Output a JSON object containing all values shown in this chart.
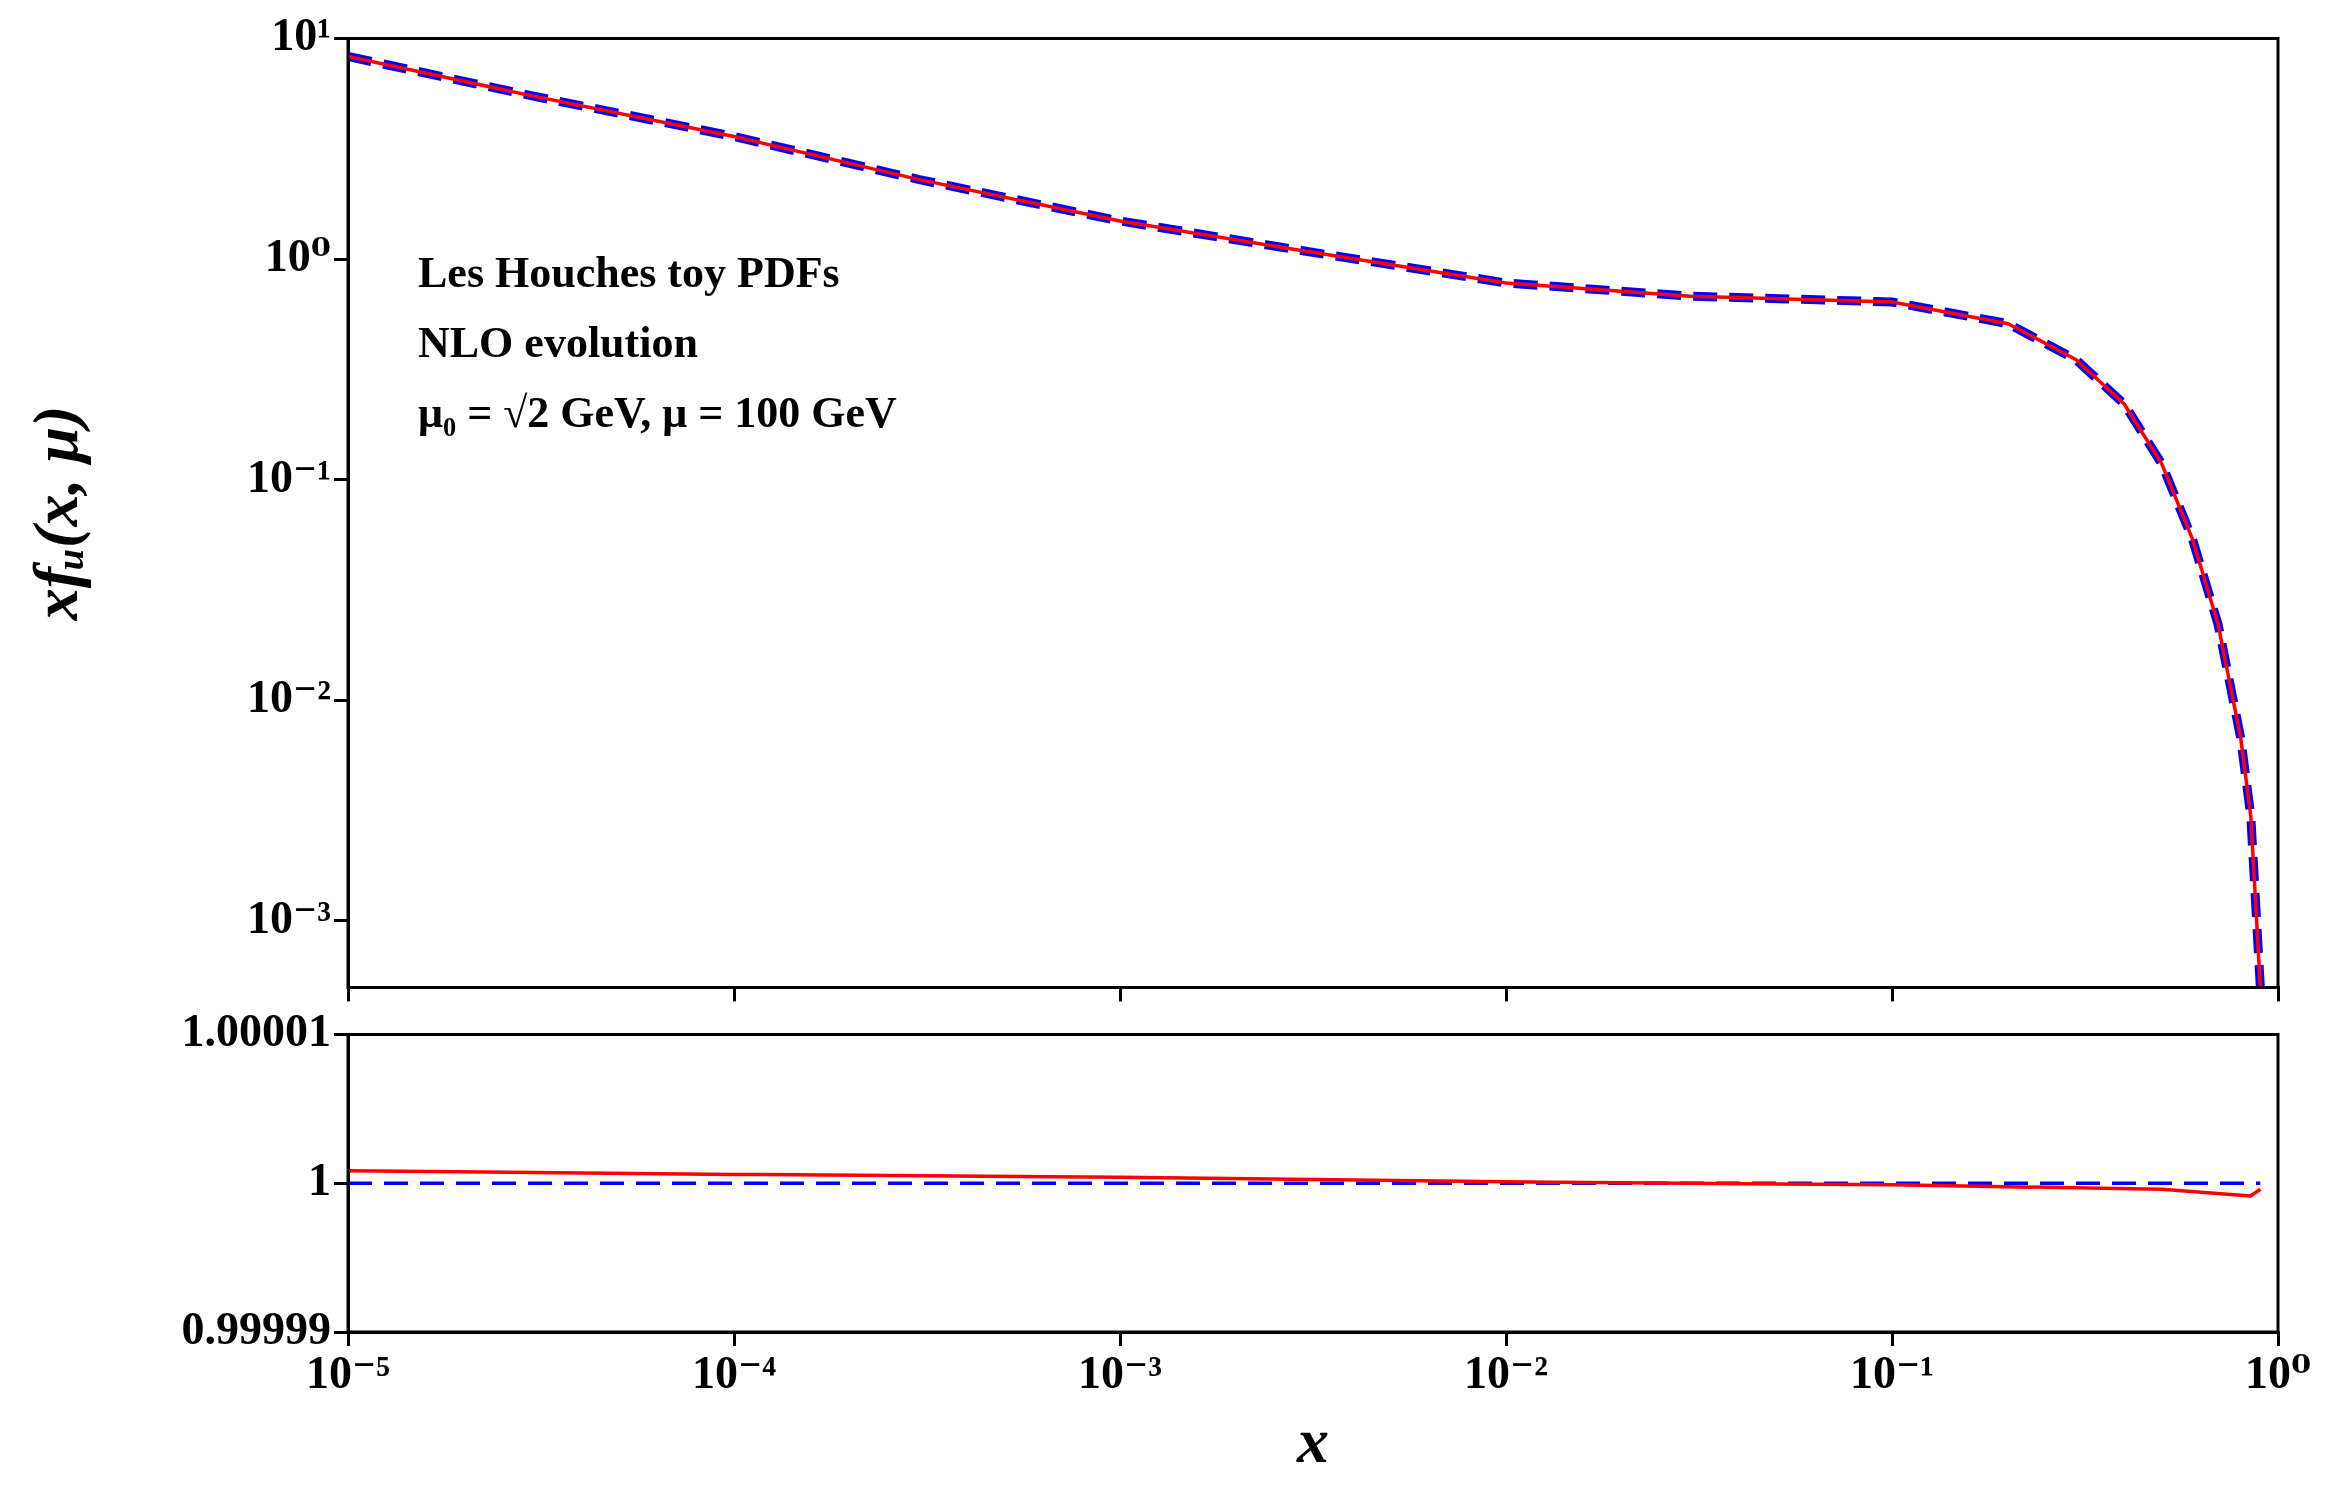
{
  "chart_data": [
    {
      "type": "line",
      "ylabel": "xfᵤ(x, μ)",
      "annotations": [
        "Les Houches toy PDFs",
        "NLO evolution",
        "μ₀ = √2 GeV, μ = 100 GeV"
      ],
      "log": "xy",
      "xlim": [
        1e-05,
        1
      ],
      "ylim": [
        0.0005,
        10
      ],
      "xticks": [
        {
          "value": 1e-05,
          "label": null
        },
        {
          "value": 0.0001,
          "label": null
        },
        {
          "value": 0.001,
          "label": null
        },
        {
          "value": 0.01,
          "label": null
        },
        {
          "value": 0.1,
          "label": null
        },
        {
          "value": 1,
          "label": null
        }
      ],
      "yticks": [
        {
          "value": 0.001,
          "label": "10⁻³"
        },
        {
          "value": 0.01,
          "label": "10⁻²"
        },
        {
          "value": 0.1,
          "label": "10⁻¹"
        },
        {
          "value": 1,
          "label": "10⁰"
        },
        {
          "value": 10,
          "label": "10¹"
        }
      ],
      "tick_labels": "y",
      "legend": false,
      "grid": false,
      "marker": "none",
      "x": [
        1e-05,
        3e-05,
        0.0001,
        0.0003,
        0.001,
        0.003,
        0.01,
        0.03,
        0.1,
        0.2,
        0.3,
        0.4,
        0.5,
        0.6,
        0.7,
        0.8,
        0.85,
        0.9
      ],
      "series": [
        {
          "color": "#ff0000",
          "line_style": "solid",
          "values": [
            8.3,
            5.5,
            3.6,
            2.3,
            1.49,
            1.09,
            0.78,
            0.68,
            0.64,
            0.51,
            0.35,
            0.22,
            0.118,
            0.054,
            0.022,
            0.0068,
            0.003,
            0.0005
          ]
        },
        {
          "color": "#0000ff",
          "line_style": "dashed",
          "values": [
            8.3,
            5.5,
            3.6,
            2.3,
            1.49,
            1.09,
            0.78,
            0.68,
            0.64,
            0.51,
            0.35,
            0.22,
            0.118,
            0.054,
            0.022,
            0.0068,
            0.003,
            0.0005
          ]
        }
      ]
    },
    {
      "type": "line",
      "xlabel": "x",
      "log": "x",
      "xlim": [
        1e-05,
        1
      ],
      "ylim": [
        0.99999,
        1.00001
      ],
      "xticks": [
        {
          "value": 1e-05,
          "label": "10⁻⁵"
        },
        {
          "value": 0.0001,
          "label": "10⁻⁴"
        },
        {
          "value": 0.001,
          "label": "10⁻³"
        },
        {
          "value": 0.01,
          "label": "10⁻²"
        },
        {
          "value": 0.1,
          "label": "10⁻¹"
        },
        {
          "value": 1,
          "label": "10⁰"
        }
      ],
      "yticks": [
        0.99999,
        1,
        1.00001
      ],
      "legend": false,
      "grid": false,
      "marker": "none",
      "x": [
        1e-05,
        0.0001,
        0.001,
        0.01,
        0.1,
        0.5,
        0.85,
        0.9
      ],
      "series": [
        {
          "color": "#ff0000",
          "line_style": "solid",
          "values": [
            1.00000085,
            1.0000006,
            1.0000004,
            1.0000001,
            0.9999999,
            0.9999996,
            0.99999915,
            0.9999996
          ]
        },
        {
          "color": "#0000ff",
          "line_style": "dashed",
          "values": [
            1,
            1,
            1,
            1,
            1,
            1,
            1,
            1
          ]
        }
      ]
    }
  ]
}
